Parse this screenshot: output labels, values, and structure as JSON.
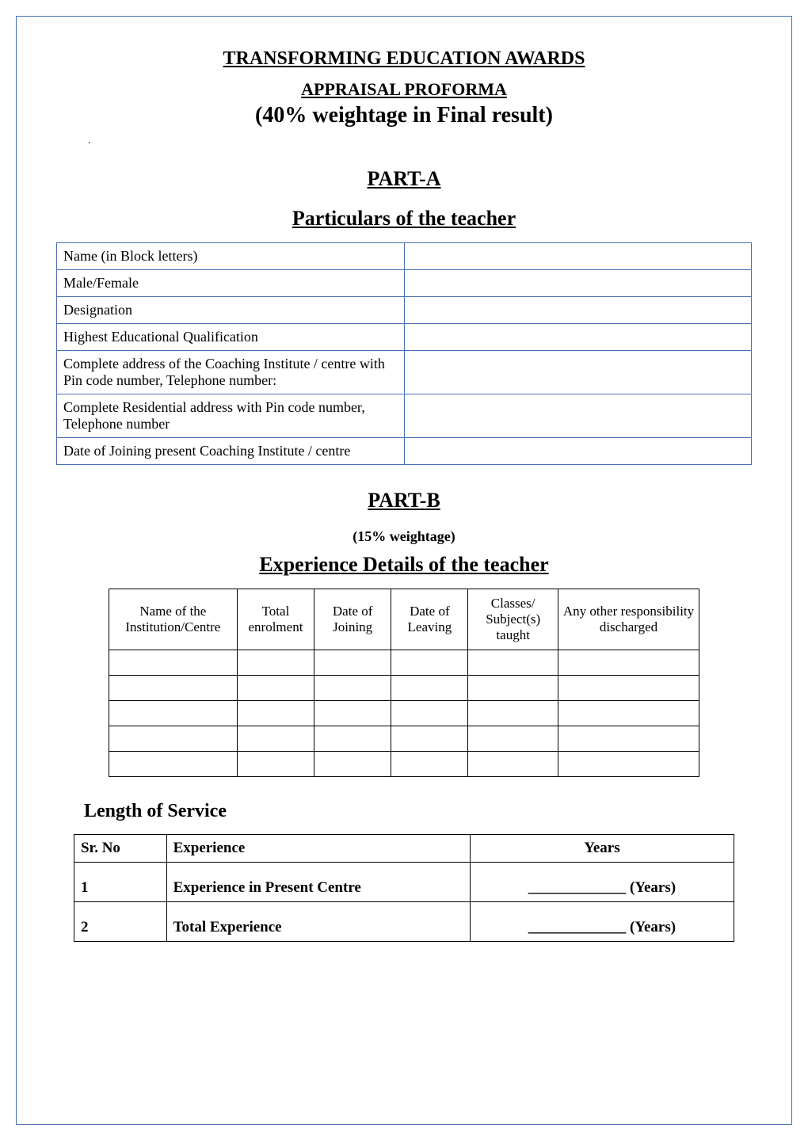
{
  "header": {
    "title_main": "TRANSFORMING EDUCATION AWARDS",
    "title_sub": "APPRAISAL PROFORMA",
    "title_weightage": "(40% weightage in Final result)",
    "dot": "."
  },
  "part_a": {
    "heading": "PART-A",
    "section_heading": "Particulars of the teacher",
    "rows": [
      {
        "label": "Name (in Block letters)",
        "value": ""
      },
      {
        "label": "Male/Female",
        "value": ""
      },
      {
        "label": "Designation",
        "value": ""
      },
      {
        "label": "Highest Educational Qualification",
        "value": ""
      },
      {
        "label": "Complete address of the Coaching Institute / centre with Pin code number, Telephone number:",
        "value": ""
      },
      {
        "label": "Complete Residential address with Pin code number, Telephone number",
        "value": ""
      },
      {
        "label": "Date of Joining present Coaching Institute / centre",
        "value": ""
      }
    ]
  },
  "part_b": {
    "heading": "PART-B",
    "sub_weightage": "(15% weightage)",
    "section_heading": "Experience Details of the teacher",
    "columns": [
      "Name of the Institution/Centre",
      "Total enrolment",
      "Date of Joining",
      "Date of Leaving",
      "Classes/ Subject(s) taught",
      "Any other responsibility discharged"
    ],
    "row_count": 5
  },
  "length_of_service": {
    "heading": "Length of Service",
    "columns": [
      "Sr. No",
      "Experience",
      "Years"
    ],
    "rows": [
      {
        "sr": "1",
        "exp": "Experience in Present Centre",
        "years": "_____________ (Years)"
      },
      {
        "sr": "2",
        "exp": "Total Experience",
        "years": "_____________ (Years)"
      }
    ]
  },
  "colors": {
    "border_blue": "#4a6fb5",
    "border_black": "#000000",
    "background": "#ffffff",
    "text": "#000000"
  },
  "fonts": {
    "family": "Times New Roman",
    "title_main_size": 24,
    "title_sub_size": 22,
    "title_weightage_size": 28,
    "part_heading_size": 26,
    "section_heading_size": 26,
    "body_size": 18
  }
}
